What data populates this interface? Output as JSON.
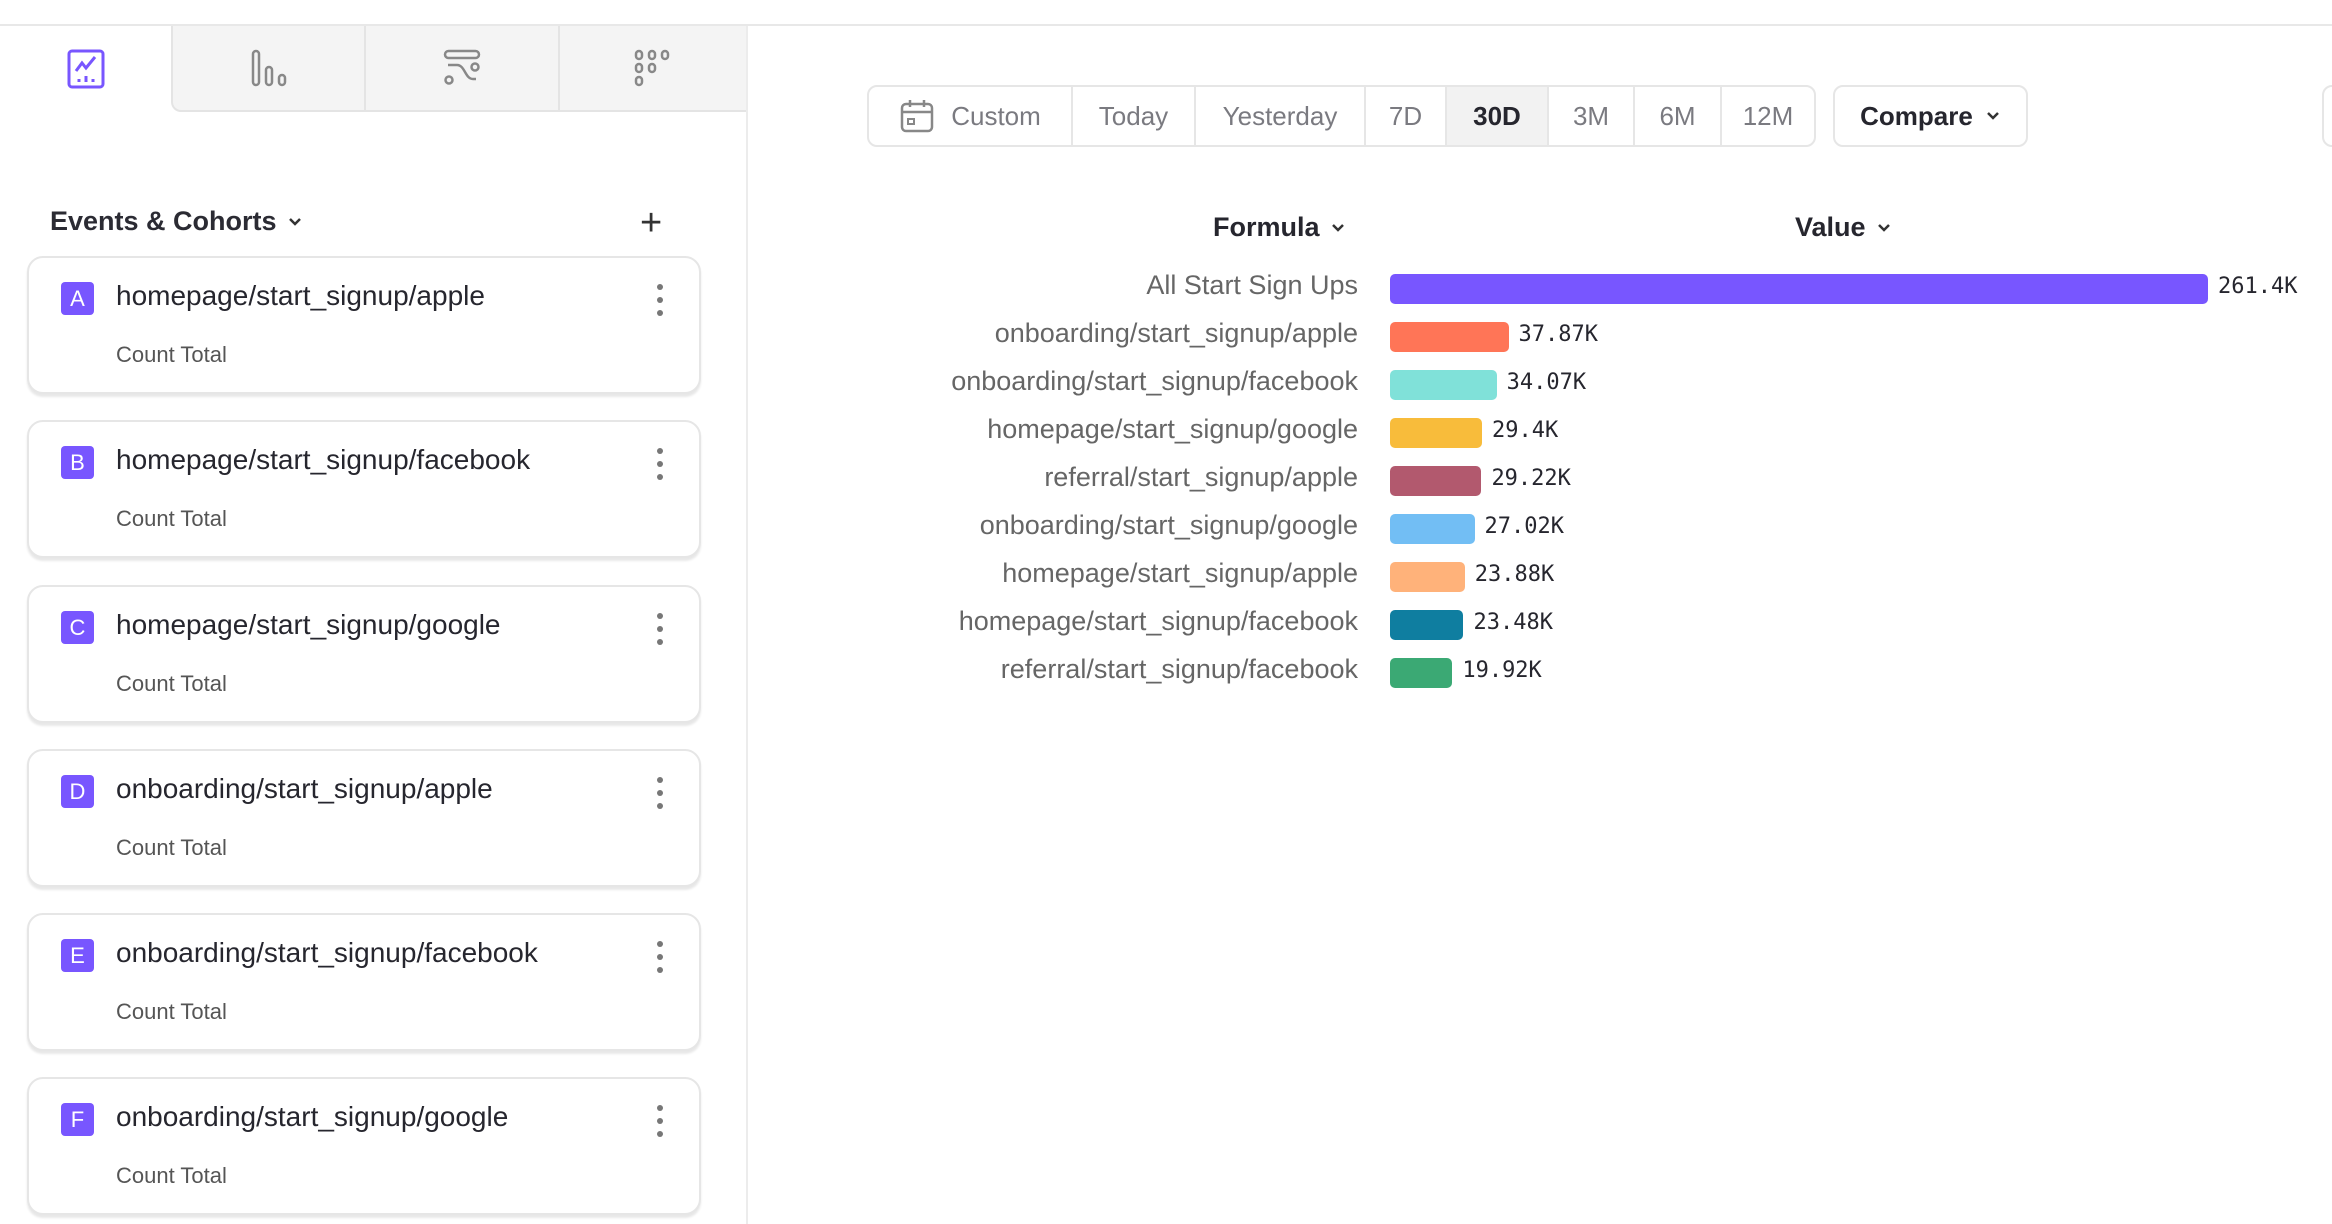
{
  "tabs": [
    {
      "icon": "insights-chart-icon",
      "active": true
    },
    {
      "icon": "funnels-bar-icon"
    },
    {
      "icon": "flows-icon"
    },
    {
      "icon": "retention-dots-icon"
    }
  ],
  "sidebar": {
    "section_title": "Events & Cohorts",
    "items": [
      {
        "letter": "A",
        "name": "homepage/start_signup/apple",
        "measure": "Count Total"
      },
      {
        "letter": "B",
        "name": "homepage/start_signup/facebook",
        "measure": "Count Total"
      },
      {
        "letter": "C",
        "name": "homepage/start_signup/google",
        "measure": "Count Total"
      },
      {
        "letter": "D",
        "name": "onboarding/start_signup/apple",
        "measure": "Count Total"
      },
      {
        "letter": "E",
        "name": "onboarding/start_signup/facebook",
        "measure": "Count Total"
      },
      {
        "letter": "F",
        "name": "onboarding/start_signup/google",
        "measure": "Count Total"
      }
    ]
  },
  "toolbar": {
    "date_ranges": [
      "Custom",
      "Today",
      "Yesterday",
      "7D",
      "30D",
      "3M",
      "6M",
      "12M"
    ],
    "selected": "30D",
    "compare_label": "Compare"
  },
  "table": {
    "col_formula": "Formula",
    "col_value": "Value"
  },
  "chart_data": {
    "type": "bar",
    "orientation": "horizontal",
    "categories": [
      "All Start Sign Ups",
      "onboarding/start_signup/apple",
      "onboarding/start_signup/facebook",
      "homepage/start_signup/google",
      "referral/start_signup/apple",
      "onboarding/start_signup/google",
      "homepage/start_signup/apple",
      "homepage/start_signup/facebook",
      "referral/start_signup/facebook"
    ],
    "values": [
      261400,
      37870,
      34070,
      29400,
      29220,
      27020,
      23880,
      23480,
      19920
    ],
    "labels": [
      "261.4K",
      "37.87K",
      "34.07K",
      "29.4K",
      "29.22K",
      "27.02K",
      "23.88K",
      "23.48K",
      "19.92K"
    ],
    "colors": [
      "#7856ff",
      "#ff7557",
      "#80e1d9",
      "#f8bc3b",
      "#b2596e",
      "#72bef4",
      "#ffb27a",
      "#0f7ea0",
      "#3ba974"
    ]
  }
}
